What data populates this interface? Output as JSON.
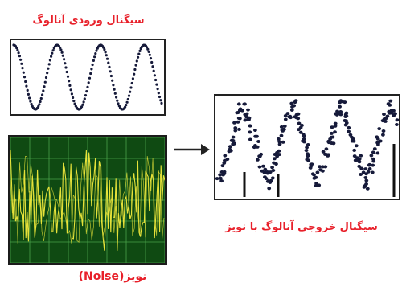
{
  "labels": {
    "input_signal": "سیگنال ورودی آنالوگ",
    "noise": "نویز(Noise)",
    "output_signal": "سیگنال خروجی آنالوگ با نویز"
  },
  "colors": {
    "label_red": "#e8202a",
    "noise_background": "#0f4a12",
    "noise_grid": "#4aa04a",
    "noise_signal": "#e6e23a",
    "dots": "#161a3a"
  },
  "icons": {
    "arrow": "arrow-right-icon"
  }
}
